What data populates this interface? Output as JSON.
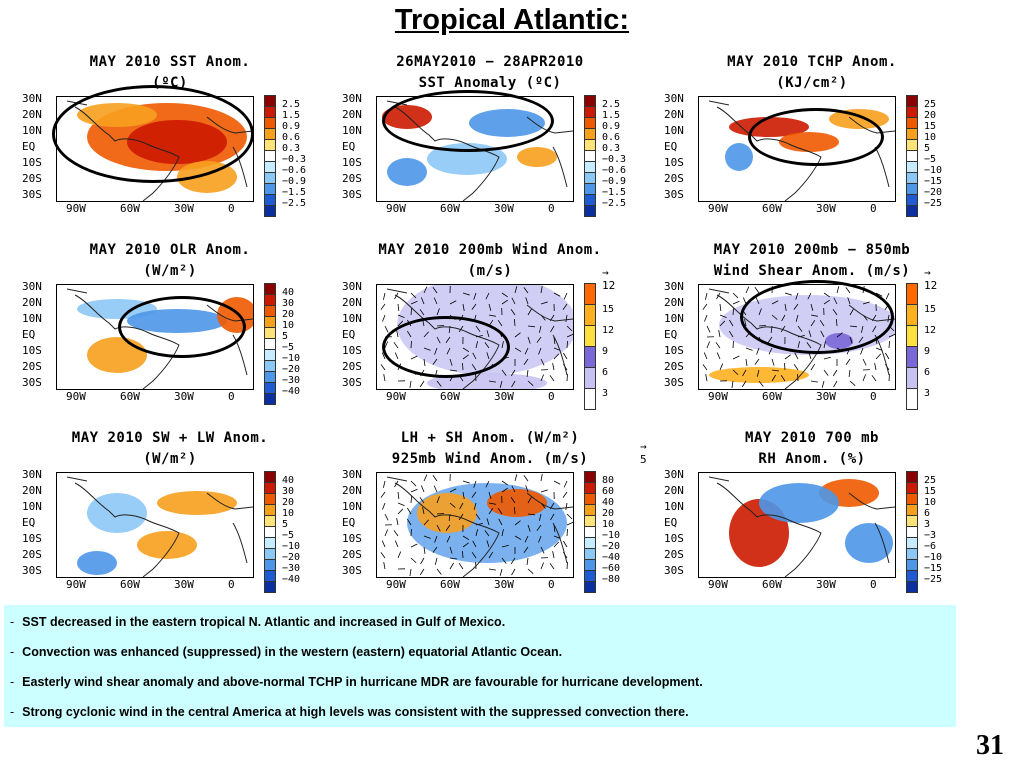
{
  "slide": {
    "title": "Tropical Atlantic:",
    "page_number": "31"
  },
  "lat_labels": [
    "30N",
    "20N",
    "10N",
    "EQ",
    "10S",
    "20S",
    "30S"
  ],
  "lon_labels": [
    "90W",
    "60W",
    "30W",
    "0"
  ],
  "panels": [
    {
      "title_line1": "MAY 2010 SST Anom.",
      "title_line2": "(ºC)",
      "colorbar": [
        "2.5",
        "1.5",
        "0.9",
        "0.6",
        "0.3",
        "−0.3",
        "−0.6",
        "−0.9",
        "−1.5",
        "−2.5"
      ]
    },
    {
      "title_line1": "26MAY2010 − 28APR2010",
      "title_line2": "SST Anomaly (ºC)",
      "colorbar": [
        "2.5",
        "1.5",
        "0.9",
        "0.6",
        "0.3",
        "−0.3",
        "−0.6",
        "−0.9",
        "−1.5",
        "−2.5"
      ]
    },
    {
      "title_line1": "MAY 2010 TCHP Anom.",
      "title_line2": "(KJ/cm²)",
      "colorbar": [
        "25",
        "20",
        "15",
        "10",
        "5",
        "−5",
        "−10",
        "−15",
        "−20",
        "−25"
      ]
    },
    {
      "title_line1": "MAY 2010 OLR Anom.",
      "title_line2": "(W/m²)",
      "colorbar": [
        "40",
        "30",
        "20",
        "10",
        "5",
        "−5",
        "−10",
        "−20",
        "−30",
        "−40"
      ]
    },
    {
      "title_line1": "MAY 2010 200mb Wind Anom.",
      "title_line2": "(m/s)",
      "ref_vector": "12",
      "colorbar": [
        "15",
        "12",
        "9",
        "6",
        "3"
      ]
    },
    {
      "title_line1": "MAY 2010 200mb − 850mb",
      "title_line2": "Wind Shear Anom. (m/s)",
      "ref_vector": "12",
      "colorbar": [
        "15",
        "12",
        "9",
        "6",
        "3"
      ]
    },
    {
      "title_line1": "MAY 2010 SW + LW Anom.",
      "title_line2": "(W/m²)",
      "colorbar": [
        "40",
        "30",
        "20",
        "10",
        "5",
        "−5",
        "−10",
        "−20",
        "−30",
        "−40"
      ]
    },
    {
      "title_line1": "LH + SH Anom. (W/m²)",
      "title_line2": "925mb Wind Anom. (m/s)",
      "ref_vector": "5",
      "colorbar": [
        "80",
        "60",
        "40",
        "20",
        "10",
        "−10",
        "−20",
        "−40",
        "−60",
        "−80"
      ]
    },
    {
      "title_line1": "MAY 2010 700 mb",
      "title_line2": "RH Anom. (%)",
      "colorbar": [
        "25",
        "15",
        "10",
        "6",
        "3",
        "−3",
        "−6",
        "−10",
        "−15",
        "−25"
      ]
    }
  ],
  "colors": {
    "diverging": [
      "#8b0000",
      "#cc1a00",
      "#ee5a00",
      "#f7a01e",
      "#ffe27a",
      "#ffffff",
      "#c7ecff",
      "#8cc8f5",
      "#4d97e8",
      "#1f5cd1",
      "#0b2ea0"
    ],
    "wind": [
      "#ff6a00",
      "#ffb020",
      "#ffe040",
      "#7b68d8",
      "#c6c2f2",
      "#ffffff"
    ],
    "bullet_box": "#ccffff"
  },
  "bullets": [
    "SST decreased in  the eastern tropical N. Atlantic and increased in Gulf of Mexico.",
    "Convection was enhanced  (suppressed) in the western (eastern) equatorial Atlantic Ocean.",
    "Easterly wind shear anomaly and above-normal TCHP in hurricane MDR are favourable for hurricane development.",
    "Strong cyclonic wind in the central America at  high levels was consistent with the suppressed convection there."
  ],
  "bullet_marker": "-"
}
